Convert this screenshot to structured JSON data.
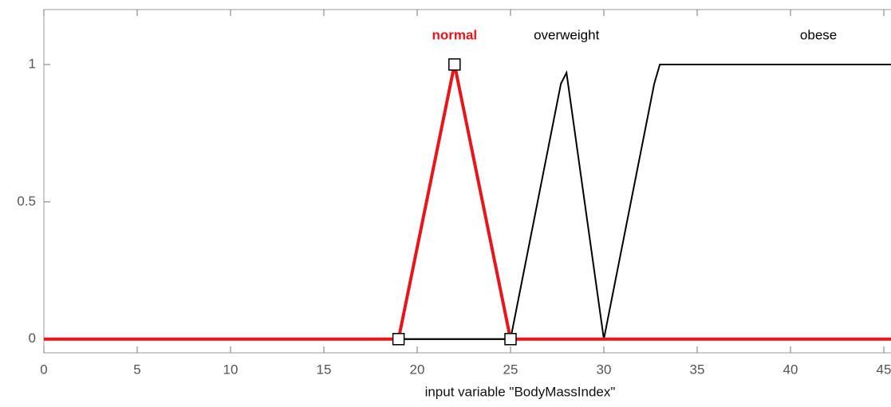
{
  "chart_data": {
    "type": "line",
    "xlabel": "input variable \"BodyMassIndex\"",
    "xlim": [
      0,
      50
    ],
    "ylim": [
      -0.05,
      1.2
    ],
    "xticks": [
      0,
      5,
      10,
      15,
      20,
      25,
      30,
      35,
      40,
      45
    ],
    "yticks": [
      0,
      0.5,
      1
    ],
    "grid": false,
    "series": [
      {
        "name": "normal",
        "color": "#e8161b",
        "selected": true,
        "x": [
          0,
          19,
          22,
          25,
          50
        ],
        "values": [
          0,
          0,
          1,
          0,
          0
        ]
      },
      {
        "name": "overweight",
        "color": "#000000",
        "selected": false,
        "x": [
          0,
          25,
          27.7,
          28,
          30,
          50
        ],
        "values": [
          0,
          0,
          0.93,
          0.97,
          0,
          0
        ]
      },
      {
        "name": "obese",
        "color": "#000000",
        "selected": false,
        "x": [
          0,
          30,
          32.7,
          33,
          50
        ],
        "values": [
          0,
          0,
          0.93,
          1,
          1
        ]
      }
    ]
  }
}
